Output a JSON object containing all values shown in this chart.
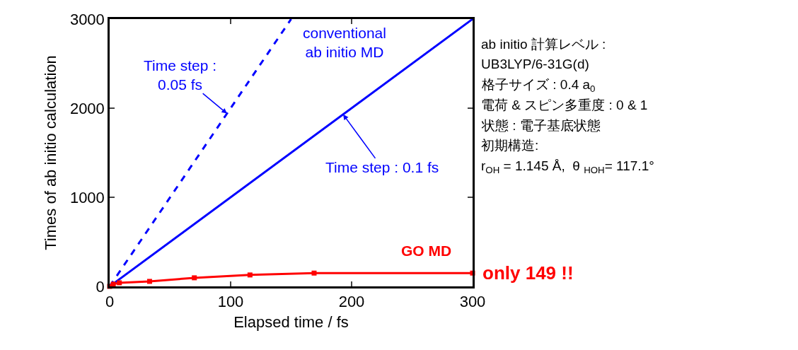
{
  "chart_data": {
    "type": "line",
    "xlabel": "Elapsed time / fs",
    "ylabel": "Times of ab initio calculation",
    "xlim": [
      0,
      300
    ],
    "ylim": [
      0,
      3000
    ],
    "xticks": [
      0,
      100,
      200,
      300
    ],
    "yticks": [
      0,
      1000,
      2000,
      3000
    ],
    "series": [
      {
        "x": [
          0,
          150
        ],
        "values": [
          0,
          3000
        ],
        "color": "#0000ff",
        "line_style": "dashed",
        "marker": "none"
      },
      {
        "x": [
          0,
          300
        ],
        "values": [
          0,
          3000
        ],
        "color": "#0000ff",
        "line_style": "solid",
        "marker": "none"
      },
      {
        "x": [
          0,
          3,
          8,
          33,
          70,
          116,
          169,
          300
        ],
        "values": [
          0,
          25,
          40,
          56,
          96,
          128,
          149,
          149
        ],
        "color": "#ff0000",
        "line_style": "solid",
        "marker": "square"
      }
    ],
    "annotations": [
      {
        "text": "Time step :\n0.05 fs",
        "x": 97,
        "y": 1940
      },
      {
        "text": "Time step : 0.1 fs",
        "x": 193,
        "y": 1930
      },
      "conventional\nab initio MD",
      "GO MD",
      {
        "text": "only 149 !!",
        "x": 300,
        "y": 149
      },
      "ab initio 計算レベル :",
      "UB3LYP/6-31G(d)",
      "格子サイズ : 0.4 a$_{0}$",
      "電荷 & スピン多重度 : 0 & 1",
      "状態 : 電子基底状態",
      "初期構造:",
      "r$_{OH}$ = 1.145 Å,  θ $_{HOH}$= 117.1°"
    ]
  }
}
